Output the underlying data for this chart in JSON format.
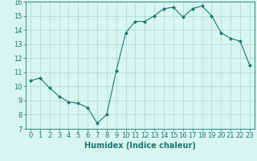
{
  "x": [
    0,
    1,
    2,
    3,
    4,
    5,
    6,
    7,
    8,
    9,
    10,
    11,
    12,
    13,
    14,
    15,
    16,
    17,
    18,
    19,
    20,
    21,
    22,
    23
  ],
  "y": [
    10.4,
    10.6,
    9.9,
    9.3,
    8.9,
    8.8,
    8.5,
    7.4,
    8.0,
    11.1,
    13.8,
    14.6,
    14.6,
    15.0,
    15.5,
    15.6,
    14.9,
    15.5,
    15.7,
    15.0,
    13.8,
    13.4,
    13.2,
    11.5
  ],
  "line_color": "#1a7a6e",
  "marker": "D",
  "marker_size": 2,
  "bg_color": "#d8f5f0",
  "grid_color": "#b0ddd8",
  "xlabel": "Humidex (Indice chaleur)",
  "xlim": [
    -0.5,
    23.5
  ],
  "ylim": [
    7,
    16
  ],
  "yticks": [
    7,
    8,
    9,
    10,
    11,
    12,
    13,
    14,
    15,
    16
  ],
  "xticks": [
    0,
    1,
    2,
    3,
    4,
    5,
    6,
    7,
    8,
    9,
    10,
    11,
    12,
    13,
    14,
    15,
    16,
    17,
    18,
    19,
    20,
    21,
    22,
    23
  ],
  "xlabel_fontsize": 7,
  "tick_fontsize": 6
}
